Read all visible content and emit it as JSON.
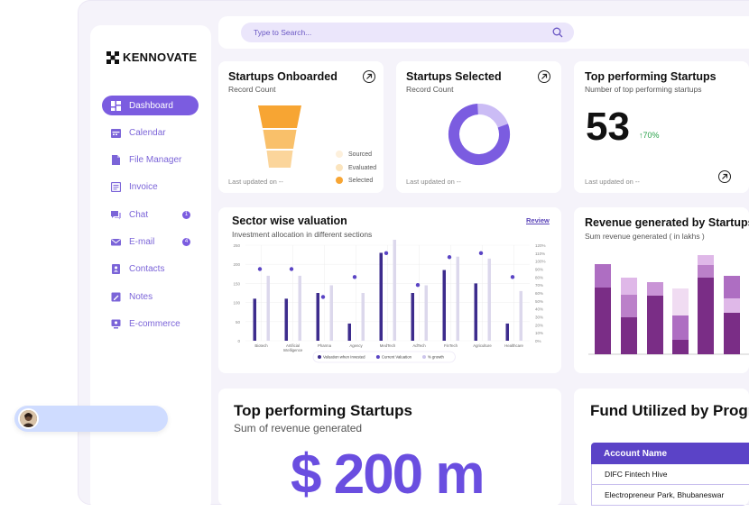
{
  "brand": {
    "name": "KENNOVATE"
  },
  "search": {
    "placeholder": "Type to Search..."
  },
  "sidebar": {
    "items": [
      {
        "label": "Dashboard",
        "icon": "dashboard-icon",
        "active": true
      },
      {
        "label": "Calendar",
        "icon": "calendar-icon"
      },
      {
        "label": "File Manager",
        "icon": "file-icon"
      },
      {
        "label": "Invoice",
        "icon": "invoice-icon"
      },
      {
        "label": "Chat",
        "icon": "chat-icon",
        "badge": "1"
      },
      {
        "label": "E-mail",
        "icon": "mail-icon",
        "badge": "4"
      },
      {
        "label": "Contacts",
        "icon": "contacts-icon"
      },
      {
        "label": "Notes",
        "icon": "notes-icon"
      },
      {
        "label": "E-commerce",
        "icon": "ecommerce-icon"
      }
    ]
  },
  "cards": {
    "onboarded": {
      "title": "Startups Onboarded",
      "subtitle": "Record Count",
      "updated": "Last updated on --",
      "legend": [
        "Sourced",
        "Evaluated",
        "Selected"
      ]
    },
    "selected": {
      "title": "Startups Selected",
      "subtitle": "Record Count",
      "updated": "Last updated on --"
    },
    "top": {
      "title": "Top performing Startups",
      "subtitle": "Number of top performing startups",
      "value": "53",
      "growth": "70%",
      "updated": "Last updated on --"
    },
    "sector": {
      "title": "Sector wise valuation",
      "subtitle": "Investment allocation in different sections",
      "review": "Review"
    },
    "revenue": {
      "title": "Revenue generated by Startups",
      "subtitle": "Sum revenue generated ( in lakhs )"
    },
    "top_revenue": {
      "title": "Top performing Startups",
      "subtitle": "Sum of revenue generated",
      "value": "$ 200 m"
    },
    "fund": {
      "title": "Fund Utilized by Program",
      "column": "Account Name",
      "rows": [
        "DIFC Fintech Hive",
        "Electropreneur Park, Bhubaneswar"
      ]
    }
  },
  "colors": {
    "accent": "#7b5ce0",
    "dark_purple": "#3d2c8d",
    "growth_green": "#2aa24a"
  },
  "chart_data": {
    "type": "bar",
    "categories": [
      "Biotech",
      "Artificial Intelligence",
      "Pharma",
      "Agency",
      "MedTech",
      "AdTech",
      "FinTech",
      "Agriculture",
      "Healthcare"
    ],
    "y_ticks": [
      "0",
      "50",
      "100",
      "150",
      "200",
      "250"
    ],
    "y2_ticks": [
      "0%",
      "10%",
      "20%",
      "30%",
      "40%",
      "50%",
      "60%",
      "70%",
      "80%",
      "90%",
      "100%",
      "110%",
      "120%"
    ],
    "ylim": [
      0,
      250
    ],
    "y2lim": [
      0,
      120
    ],
    "series": [
      {
        "name": "Valuation when Invested",
        "values": [
          110,
          110,
          125,
          45,
          230,
          125,
          185,
          150,
          45
        ]
      },
      {
        "name": "Current Valuation",
        "values": [
          170,
          170,
          145,
          125,
          265,
          145,
          220,
          215,
          130
        ]
      },
      {
        "name": "% growth",
        "values": [
          90,
          90,
          55,
          80,
          110,
          70,
          105,
          110,
          80
        ]
      }
    ],
    "legend": [
      "Valuation when Invested",
      "Current Valuation",
      "% growth"
    ]
  }
}
